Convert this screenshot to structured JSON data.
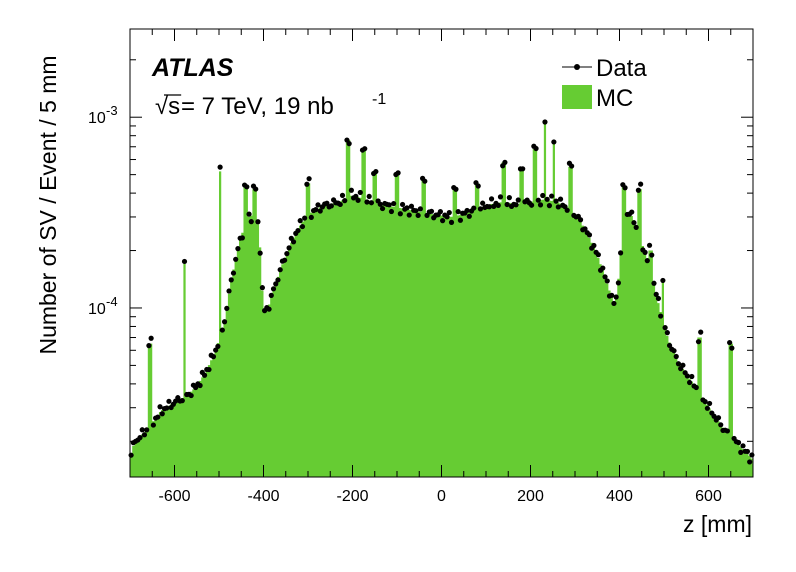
{
  "chart_data": {
    "type": "area",
    "xlabel": "z [mm]",
    "ylabel": "Number of SV / Event / 5 mm",
    "xlim": [
      -700,
      700
    ],
    "ylim": [
      1.3e-05,
      0.0029
    ],
    "yscale": "log",
    "x_ticks": [
      -600,
      -400,
      -200,
      0,
      200,
      400,
      600
    ],
    "x_tick_labels": [
      "-600",
      "-400",
      "-200",
      "0",
      "200",
      "400",
      "600"
    ],
    "y_tick_labels": [
      {
        "value": 0.001,
        "base": "10",
        "exp": "-3"
      },
      {
        "value": 0.0001,
        "base": "10",
        "exp": "-4"
      }
    ],
    "grid": false,
    "legend_position": "top-right",
    "annotations": {
      "experiment": "ATLAS",
      "sqrt_symbol": "√s",
      "energy": " = 7 TeV, 19 nb",
      "lumi_exp": "-1"
    },
    "bin_width_mm": 5,
    "baseline_points": [
      [
        -700,
        1.6e-05
      ],
      [
        -690,
        2e-05
      ],
      [
        -670,
        2.2e-05
      ],
      [
        -650,
        2.5e-05
      ],
      [
        -630,
        2.9e-05
      ],
      [
        -610,
        3.1e-05
      ],
      [
        -590,
        3.3e-05
      ],
      [
        -570,
        3.5e-05
      ],
      [
        -550,
        3.9e-05
      ],
      [
        -530,
        4.6e-05
      ],
      [
        -510,
        5.8e-05
      ],
      [
        -490,
        8e-05
      ],
      [
        -470,
        0.00015
      ],
      [
        -450,
        0.00024
      ],
      [
        -430,
        0.00031
      ],
      [
        -410,
        0.00027
      ],
      [
        -400,
        9.5e-05
      ],
      [
        -390,
        0.0001
      ],
      [
        -370,
        0.00014
      ],
      [
        -350,
        0.00019
      ],
      [
        -330,
        0.00024
      ],
      [
        -310,
        0.00029
      ],
      [
        -290,
        0.00032
      ],
      [
        -270,
        0.00034
      ],
      [
        -250,
        0.00035
      ],
      [
        -230,
        0.00036
      ],
      [
        -200,
        0.00039
      ],
      [
        -170,
        0.00037
      ],
      [
        -140,
        0.00035
      ],
      [
        -110,
        0.00034
      ],
      [
        -80,
        0.00033
      ],
      [
        -50,
        0.00032
      ],
      [
        -20,
        0.00031
      ],
      [
        0,
        0.000305
      ],
      [
        20,
        0.0003
      ],
      [
        50,
        0.00031
      ],
      [
        80,
        0.00033
      ],
      [
        110,
        0.00035
      ],
      [
        140,
        0.00036
      ],
      [
        170,
        0.00035
      ],
      [
        200,
        0.00036
      ],
      [
        230,
        0.00037
      ],
      [
        260,
        0.00036
      ],
      [
        290,
        0.00033
      ],
      [
        310,
        0.00029
      ],
      [
        330,
        0.00024
      ],
      [
        350,
        0.00019
      ],
      [
        370,
        0.00014
      ],
      [
        390,
        0.0001
      ],
      [
        400,
        0.00016
      ],
      [
        410,
        0.00033
      ],
      [
        430,
        0.0003
      ],
      [
        450,
        0.00022
      ],
      [
        470,
        0.00016
      ],
      [
        490,
        0.0001
      ],
      [
        510,
        6.8e-05
      ],
      [
        530,
        5.3e-05
      ],
      [
        550,
        4.5e-05
      ],
      [
        570,
        3.9e-05
      ],
      [
        590,
        3.3e-05
      ],
      [
        610,
        2.8e-05
      ],
      [
        630,
        2.4e-05
      ],
      [
        650,
        2.1e-05
      ],
      [
        670,
        1.9e-05
      ],
      [
        690,
        1.7e-05
      ],
      [
        700,
        1.6e-05
      ]
    ],
    "peaks": [
      [
        -655,
        6.5e-05
      ],
      [
        -578,
        0.00017
      ],
      [
        -498,
        0.00052
      ],
      [
        -440,
        0.00043
      ],
      [
        -420,
        0.00042
      ],
      [
        -300,
        0.00045
      ],
      [
        -210,
        0.00076
      ],
      [
        -175,
        0.00069
      ],
      [
        -150,
        0.00052
      ],
      [
        -100,
        0.0005
      ],
      [
        -40,
        0.00047
      ],
      [
        30,
        0.00042
      ],
      [
        80,
        0.00045
      ],
      [
        140,
        0.00058
      ],
      [
        180,
        0.00055
      ],
      [
        210,
        0.00068
      ],
      [
        232,
        0.00095
      ],
      [
        252,
        0.00075
      ],
      [
        290,
        0.00055
      ],
      [
        410,
        0.00043
      ],
      [
        445,
        0.00042
      ],
      [
        470,
        0.0002
      ],
      [
        498,
        0.00014
      ],
      [
        580,
        7e-05
      ],
      [
        650,
        6.5e-05
      ]
    ],
    "series": [
      {
        "name": "Data",
        "style": "markers",
        "color": "#000000"
      },
      {
        "name": "MC",
        "style": "filled-histogram",
        "color": "#66cc33"
      }
    ]
  }
}
